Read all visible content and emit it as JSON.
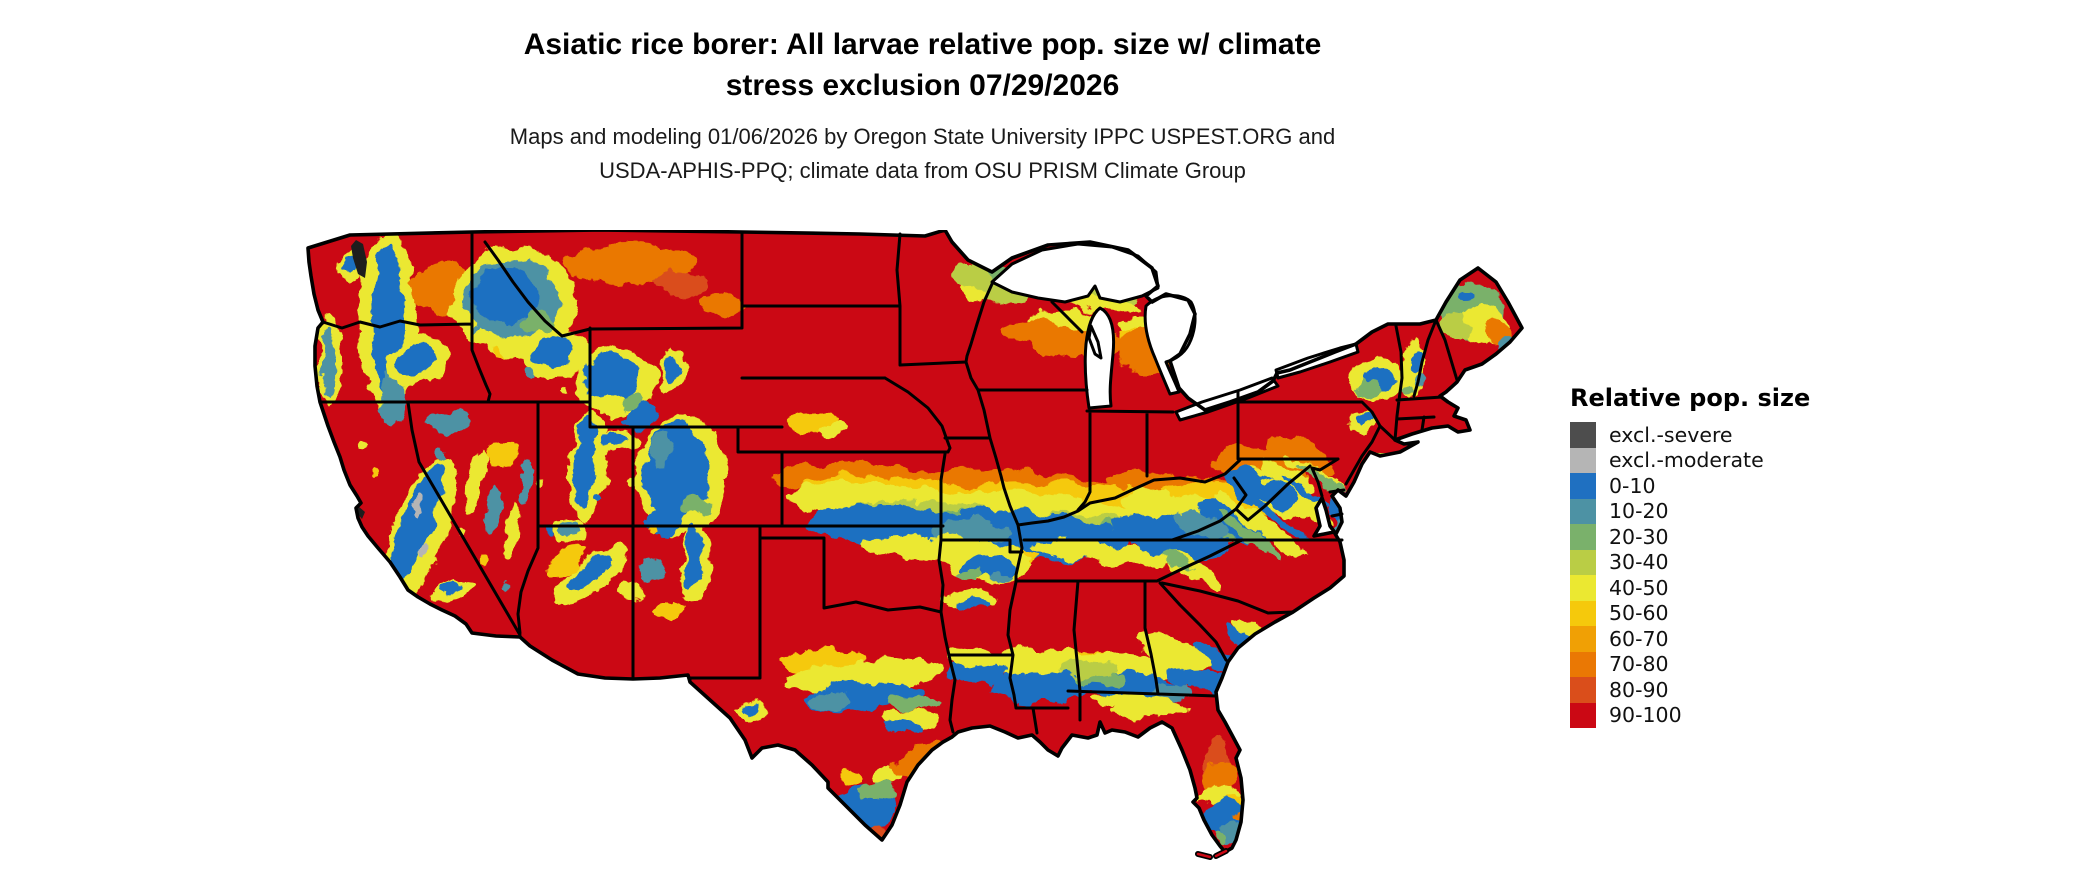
{
  "header": {
    "title_line1": "Asiatic rice borer: All larvae relative pop. size w/ climate",
    "title_line2": "stress exclusion 07/29/2026",
    "subtitle_line1": "Maps and modeling 01/06/2026 by Oregon State University IPPC USPEST.ORG and",
    "subtitle_line2": "USDA-APHIS-PPQ; climate data from OSU PRISM Climate Group"
  },
  "legend": {
    "title": "Relative pop. size",
    "entries": [
      {
        "label": "excl.-severe",
        "color": "#4D4D4D"
      },
      {
        "label": "excl.-moderate",
        "color": "#B5B5B5"
      },
      {
        "label": "0-10",
        "color": "#1F70C1"
      },
      {
        "label": "10-20",
        "color": "#4D92A4"
      },
      {
        "label": "20-30",
        "color": "#7AB16B"
      },
      {
        "label": "30-40",
        "color": "#BACD45"
      },
      {
        "label": "40-50",
        "color": "#EBE831"
      },
      {
        "label": "50-60",
        "color": "#F5C90C"
      },
      {
        "label": "60-70",
        "color": "#F0A005"
      },
      {
        "label": "70-80",
        "color": "#EA7804"
      },
      {
        "label": "80-90",
        "color": "#DA4E1B"
      },
      {
        "label": "90-100",
        "color": "#CB0814"
      }
    ]
  },
  "map": {
    "region": "Contiguous United States",
    "dominant_class": "90-100",
    "water_color": "#FFFFFF",
    "border_color": "#000000",
    "background_color": "#FFFFFF"
  }
}
